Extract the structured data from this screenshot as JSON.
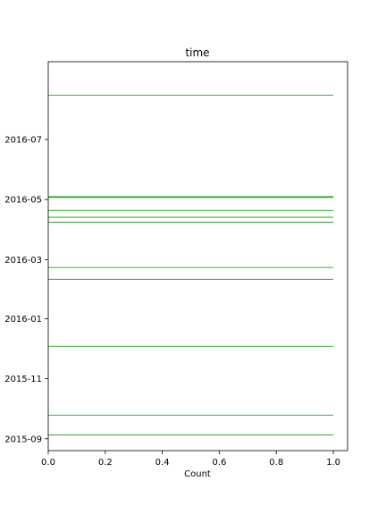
{
  "chart_data": {
    "type": "horizontal-line",
    "title": "time",
    "xlabel": "Count",
    "ylabel": "",
    "xlim": [
      0.0,
      1.05
    ],
    "xticks": [
      0.0,
      0.2,
      0.4,
      0.6,
      0.8,
      1.0
    ],
    "xtick_labels": [
      "0.0",
      "0.2",
      "0.4",
      "0.6",
      "0.8",
      "1.0"
    ],
    "ylim": [
      "2015-08-20",
      "2016-09-18"
    ],
    "yticks": [
      "2015-09-01",
      "2015-11-01",
      "2016-01-01",
      "2016-03-01",
      "2016-05-01",
      "2016-07-01"
    ],
    "ytick_labels": [
      "2015-09",
      "2015-11",
      "2016-01",
      "2016-03",
      "2016-05",
      "2016-07"
    ],
    "line_color": "#2ca02c",
    "grid": false,
    "lines": [
      {
        "date": "2016-08-15",
        "x_start": 0.0,
        "x_end": 1.0
      },
      {
        "date": "2016-05-04",
        "x_start": 0.0,
        "x_end": 1.0
      },
      {
        "date": "2016-05-03",
        "x_start": 0.0,
        "x_end": 1.0
      },
      {
        "date": "2016-04-20",
        "x_start": 0.0,
        "x_end": 1.0
      },
      {
        "date": "2016-04-13",
        "x_start": 0.0,
        "x_end": 1.0
      },
      {
        "date": "2016-04-08",
        "x_start": 0.0,
        "x_end": 1.0
      },
      {
        "date": "2016-02-22",
        "x_start": 0.0,
        "x_end": 1.0
      },
      {
        "date": "2016-02-10",
        "x_start": 0.0,
        "x_end": 1.0
      },
      {
        "date": "2015-12-04",
        "x_start": 0.0,
        "x_end": 1.0
      },
      {
        "date": "2015-09-25",
        "x_start": 0.0,
        "x_end": 1.0
      },
      {
        "date": "2015-09-05",
        "x_start": 0.0,
        "x_end": 1.0
      }
    ]
  }
}
